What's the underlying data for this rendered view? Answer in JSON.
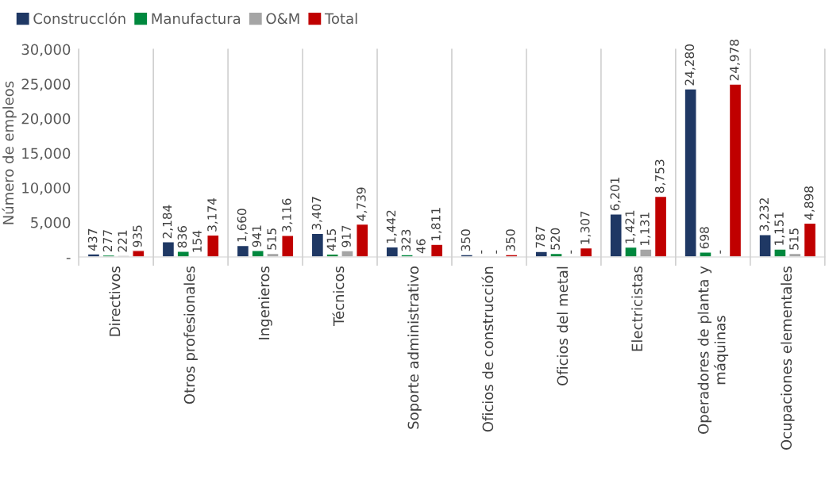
{
  "chart_data": {
    "type": "bar",
    "ylabel": "Número de empleos",
    "categories": [
      "Directivos",
      "Otros profesionales",
      "Ingenieros",
      "Técnicos",
      "Soporte administrativo",
      "Oficios de construcción",
      "Oficios del metal",
      "Electricistas",
      "Operadores de planta y máquinas",
      "Ocupaciones elementales"
    ],
    "series": [
      {
        "name": "Construcclón",
        "color": "#1f3864",
        "values": [
          437,
          2184,
          1660,
          3407,
          1442,
          350,
          787,
          6201,
          24280,
          3232
        ],
        "value_labels": [
          "437",
          "2,184",
          "1,660",
          "3,407",
          "1,442",
          "350",
          "787",
          "6,201",
          "24,280",
          "3,232"
        ]
      },
      {
        "name": "Manufactura",
        "color": "#00883e",
        "values": [
          277,
          836,
          941,
          415,
          323,
          null,
          520,
          1421,
          698,
          1151
        ],
        "value_labels": [
          "277",
          "836",
          "941",
          "415",
          "323",
          "-",
          "520",
          "1,421",
          "698",
          "1,151"
        ]
      },
      {
        "name": "O&M",
        "color": "#a5a5a5",
        "values": [
          221,
          154,
          515,
          917,
          46,
          null,
          null,
          1131,
          null,
          515
        ],
        "value_labels": [
          "221",
          "154",
          "515",
          "917",
          "46",
          "-",
          "-",
          "1,131",
          "-",
          "515"
        ]
      },
      {
        "name": "Total",
        "color": "#c00000",
        "values": [
          935,
          3174,
          3116,
          4739,
          1811,
          350,
          1307,
          8753,
          24978,
          4898
        ],
        "value_labels": [
          "935",
          "3,174",
          "3,116",
          "4,739",
          "1,811",
          "350",
          "1,307",
          "8,753",
          "24,978",
          "4,898"
        ]
      }
    ],
    "ylim": [
      0,
      30000
    ],
    "yticks": [
      {
        "value": 0,
        "label": "-"
      },
      {
        "value": 5000,
        "label": "5,000"
      },
      {
        "value": 10000,
        "label": "10,000"
      },
      {
        "value": 15000,
        "label": "15,000"
      },
      {
        "value": 20000,
        "label": "20,000"
      },
      {
        "value": 25000,
        "label": "25,000"
      },
      {
        "value": 30000,
        "label": "30,000"
      }
    ],
    "grid": "x",
    "legend": "top left"
  }
}
